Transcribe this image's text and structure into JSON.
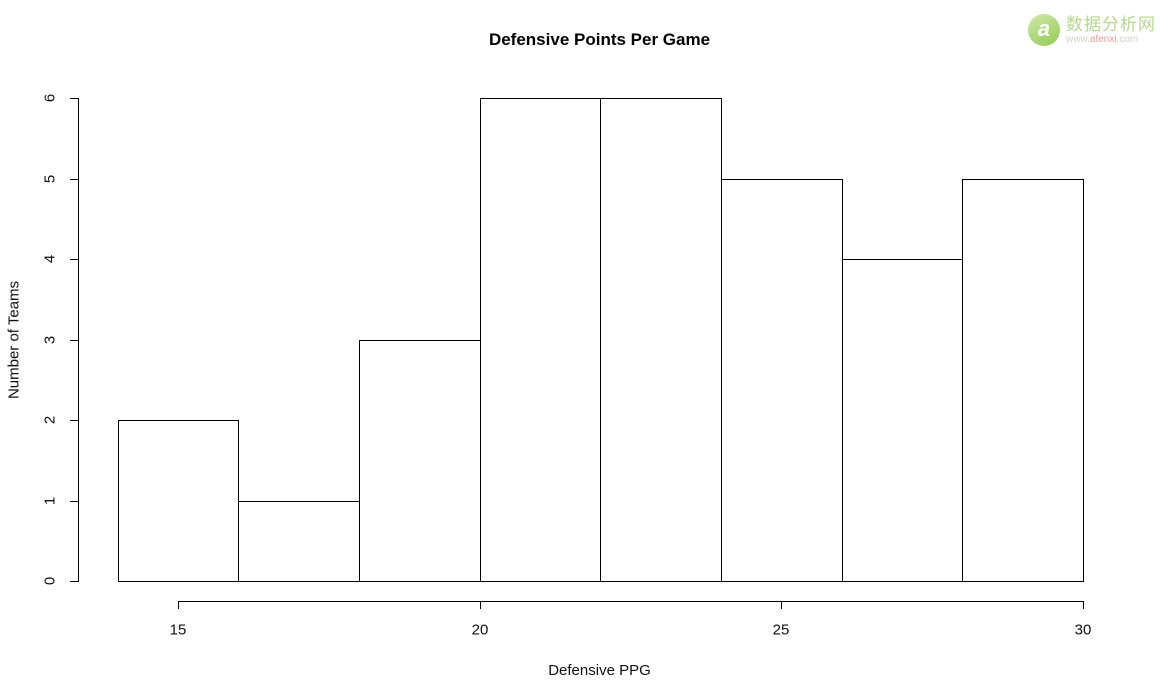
{
  "chart_data": {
    "type": "bar",
    "subtype": "histogram",
    "title": "Defensive Points Per Game",
    "xlabel": "Defensive PPG",
    "ylabel": "Number of Teams",
    "bin_edges": [
      14,
      16,
      18,
      20,
      22,
      24,
      26,
      28,
      30
    ],
    "counts": [
      2,
      1,
      3,
      6,
      6,
      5,
      4,
      5
    ],
    "x_ticks": [
      15,
      20,
      25,
      30
    ],
    "y_ticks": [
      0,
      1,
      2,
      3,
      4,
      5,
      6
    ],
    "xlim": [
      14,
      30
    ],
    "ylim": [
      0,
      6
    ],
    "grid": false,
    "legend": null,
    "bar_fill": "#ffffff",
    "bar_border": "#000000",
    "axis_color": "#000000"
  },
  "watermark": {
    "logo_letter": "a",
    "site_name": "数据分析网",
    "site_url_prefix": "www.",
    "site_url_domain": "afenxi",
    "site_url_suffix": ".com",
    "brand_green": "#9ccf5f",
    "brand_red": "#e59b97"
  }
}
